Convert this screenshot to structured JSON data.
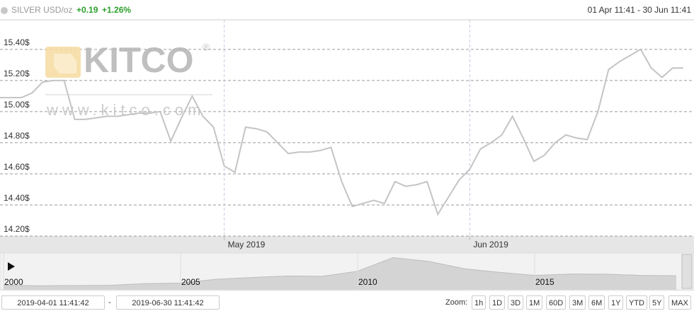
{
  "header": {
    "symbol": "SILVER USD/oz",
    "change": "+0.19",
    "change_pct": "+1.26%",
    "range": "01 Apr 11:41 - 30 Jun 11:41"
  },
  "watermark": {
    "brand": "KITCO",
    "mark": "®",
    "url": "www.kitco.com"
  },
  "chart_data": [
    {
      "type": "line",
      "color": "#c4c4c4",
      "categories": [
        null,
        null,
        null,
        null,
        null,
        null,
        null,
        null,
        null,
        null,
        null,
        null,
        null,
        null,
        null,
        null,
        null,
        null,
        null,
        null,
        null,
        "May 2019",
        null,
        null,
        null,
        null,
        null,
        null,
        null,
        null,
        null,
        null,
        null,
        null,
        null,
        null,
        null,
        null,
        null,
        null,
        null,
        null,
        null,
        null,
        "Jun 2019",
        null,
        null,
        null,
        null,
        null,
        null,
        null,
        null,
        null,
        null,
        null,
        null,
        null,
        null,
        null,
        null,
        null,
        null,
        null,
        null
      ],
      "values": [
        15.09,
        15.09,
        15.09,
        15.12,
        15.19,
        15.2,
        15.2,
        14.95,
        14.95,
        14.96,
        14.97,
        14.97,
        14.98,
        14.99,
        14.99,
        15.0,
        14.81,
        14.96,
        15.1,
        14.97,
        14.9,
        14.65,
        14.61,
        14.9,
        14.89,
        14.87,
        14.8,
        14.73,
        14.74,
        14.74,
        14.75,
        14.77,
        14.55,
        14.39,
        14.41,
        14.43,
        14.41,
        14.55,
        14.52,
        14.53,
        14.55,
        14.34,
        14.45,
        14.56,
        14.63,
        14.76,
        14.8,
        14.85,
        14.97,
        14.83,
        14.68,
        14.72,
        14.8,
        14.85,
        14.83,
        14.82,
        15.0,
        15.27,
        15.32,
        15.36,
        15.4,
        15.28,
        15.22,
        15.28,
        15.28
      ],
      "ylim": [
        14.2,
        15.59
      ],
      "yticks": [
        {
          "value": 14.2,
          "label": "14.20$"
        },
        {
          "value": 14.4,
          "label": "14.40$"
        },
        {
          "value": 14.6,
          "label": "14.60$"
        },
        {
          "value": 14.8,
          "label": "14.80$"
        },
        {
          "value": 15.0,
          "label": "15.00$"
        },
        {
          "value": 15.2,
          "label": "15.20$"
        },
        {
          "value": 15.4,
          "label": "15.40$"
        }
      ],
      "grid": true
    },
    {
      "type": "area",
      "color": "#d4d4d4",
      "x": [
        2000,
        2001,
        2002,
        2003,
        2004,
        2005,
        2006,
        2007,
        2008,
        2009,
        2010,
        2011,
        2012,
        2013,
        2014,
        2015,
        2016,
        2017,
        2018,
        2019
      ],
      "values": [
        5.0,
        4.4,
        4.6,
        4.9,
        6.7,
        7.3,
        11.5,
        13.4,
        15.0,
        14.7,
        20.2,
        35.0,
        31.0,
        23.0,
        19.0,
        15.7,
        17.1,
        17.0,
        15.7,
        15.3
      ],
      "xlim": [
        1999.9,
        2019.5
      ],
      "xticks": [
        2000,
        2005,
        2010,
        2015
      ],
      "ylim": [
        0,
        40
      ]
    }
  ],
  "range_selector": {
    "from": "2019-04-01 11:41:42",
    "separator": "-",
    "to": "2019-06-30 11:41:42",
    "zoom_label": "Zoom:",
    "buttons": [
      "1h",
      "1D",
      "3D",
      "1M",
      "60D",
      "3M",
      "6M",
      "1Y",
      "YTD",
      "5Y",
      "MAX"
    ]
  }
}
